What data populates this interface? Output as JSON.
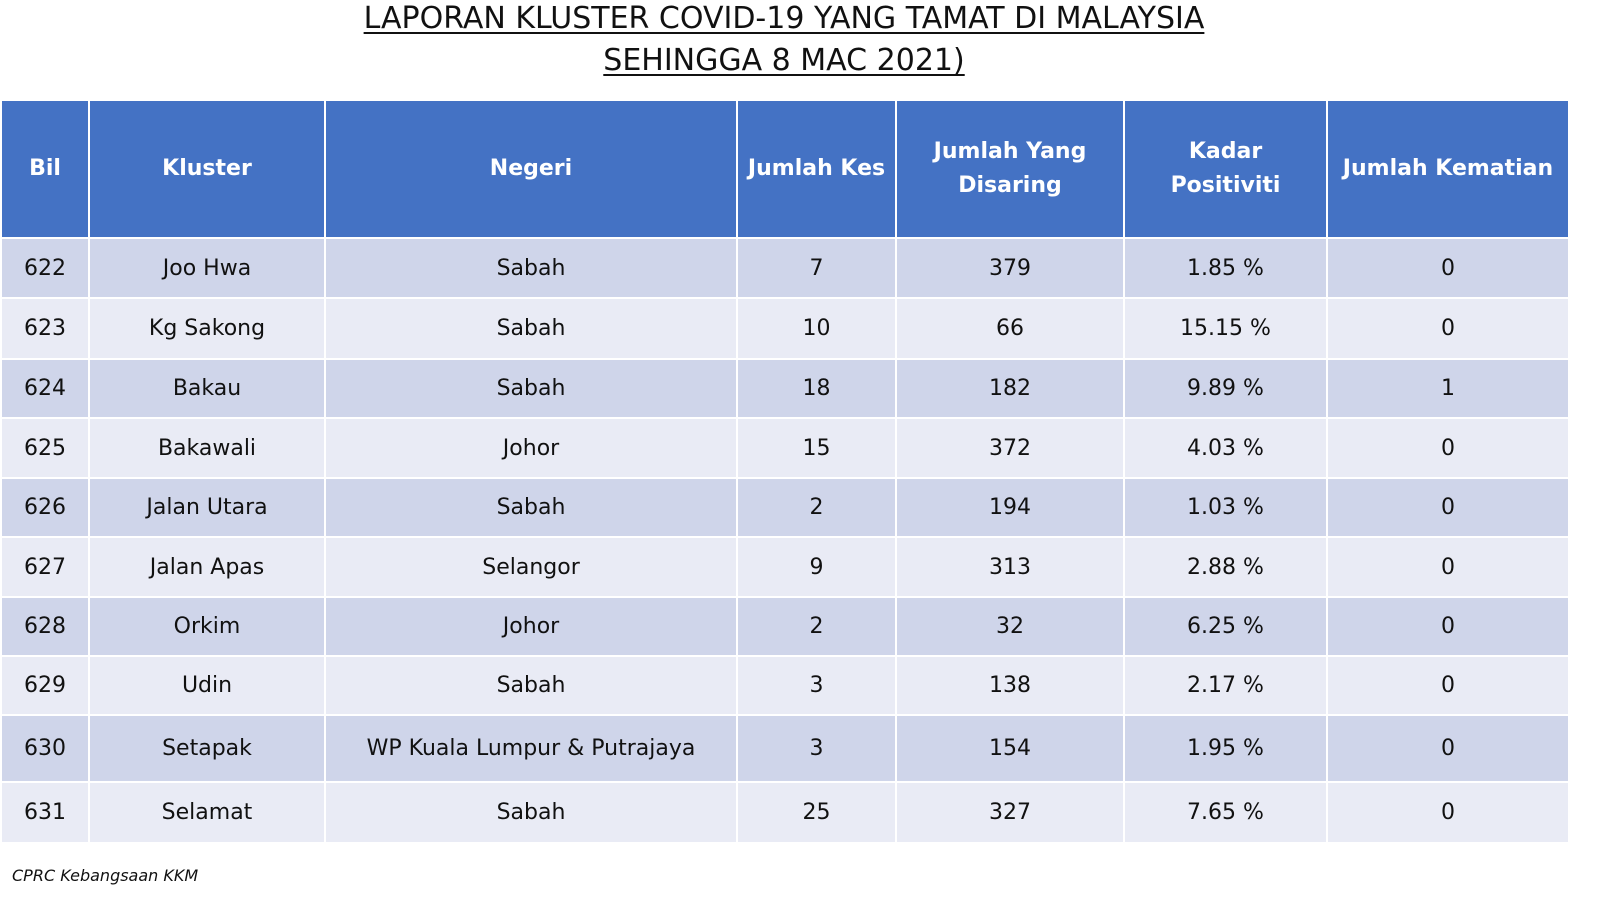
{
  "title": {
    "line1": "LAPORAN KLUSTER COVID-19 YANG TAMAT DI MALAYSIA",
    "line2": "SEHINGGA 8 MAC 2021)"
  },
  "table": {
    "headers": [
      "Bil",
      "Kluster",
      "Negeri",
      "Jumlah Kes",
      "Jumlah Yang Disaring",
      "Kadar Positiviti",
      "Jumlah Kematian"
    ],
    "rows": [
      [
        "622",
        "Joo Hwa",
        "Sabah",
        "7",
        "379",
        "1.85 %",
        "0"
      ],
      [
        "623",
        "Kg Sakong",
        "Sabah",
        "10",
        "66",
        "15.15 %",
        "0"
      ],
      [
        "624",
        "Bakau",
        "Sabah",
        "18",
        "182",
        "9.89 %",
        "1"
      ],
      [
        "625",
        "Bakawali",
        "Johor",
        "15",
        "372",
        "4.03 %",
        "0"
      ],
      [
        "626",
        "Jalan Utara",
        "Sabah",
        "2",
        "194",
        "1.03 %",
        "0"
      ],
      [
        "627",
        "Jalan Apas",
        "Selangor",
        "9",
        "313",
        "2.88 %",
        "0"
      ],
      [
        "628",
        "Orkim",
        "Johor",
        "2",
        "32",
        "6.25 %",
        "0"
      ],
      [
        "629",
        "Udin",
        "Sabah",
        "3",
        "138",
        "2.17 %",
        "0"
      ],
      [
        "630",
        "Setapak",
        "WP Kuala Lumpur & Putrajaya",
        "3",
        "154",
        "1.95 %",
        "0"
      ],
      [
        "631",
        "Selamat",
        "Sabah",
        "25",
        "327",
        "7.65 %",
        "0"
      ]
    ]
  },
  "source": "CPRC Kebangsaan KKM",
  "colors": {
    "header_bg": "#4472c4",
    "row_odd": "#cfd5ea",
    "row_even": "#e9ebf5"
  }
}
